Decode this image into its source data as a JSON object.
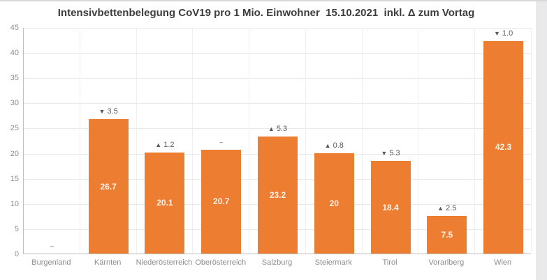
{
  "chart_data": {
    "type": "bar",
    "title": "Intensivbettenbelegung CoV19 pro 1 Mio. Einwohner  15.10.2021  inkl. Δ zum Vortag",
    "categories": [
      "Burgenland",
      "Kärnten",
      "Niederösterreich",
      "Oberösterreich",
      "Salzburg",
      "Steiermark",
      "Tirol",
      "Vorarlberg",
      "Wien"
    ],
    "values": [
      0,
      26.7,
      20.1,
      20.7,
      23.2,
      20,
      18.4,
      7.5,
      42.3
    ],
    "value_labels": [
      "",
      "26.7",
      "20.1",
      "20.7",
      "23.2",
      "20",
      "18.4",
      "7.5",
      "42.3"
    ],
    "deltas": [
      {
        "direction": "none",
        "value": ""
      },
      {
        "direction": "down",
        "value": "3.5"
      },
      {
        "direction": "up",
        "value": "1.2"
      },
      {
        "direction": "none",
        "value": ""
      },
      {
        "direction": "up",
        "value": "5.3"
      },
      {
        "direction": "up",
        "value": "0.8"
      },
      {
        "direction": "down",
        "value": "5.3"
      },
      {
        "direction": "up",
        "value": "2.5"
      },
      {
        "direction": "down",
        "value": "1.0"
      }
    ],
    "marker_glyphs": {
      "up": "▲",
      "down": "▼",
      "none": "–"
    },
    "xlabel": "",
    "ylabel": "",
    "ylim": [
      0,
      45
    ],
    "ytick_step": 5,
    "grid": true,
    "legend": "none",
    "bar_color": "#ED7D31"
  }
}
